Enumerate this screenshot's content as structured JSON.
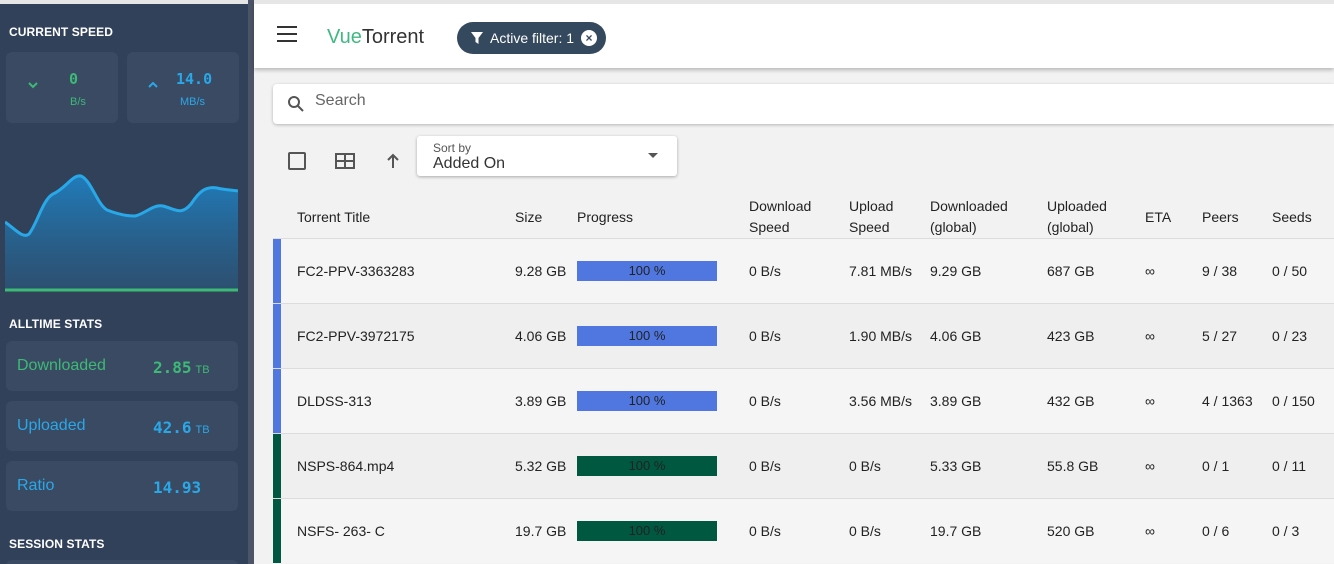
{
  "sidebar": {
    "current_speed_title": "CURRENT SPEED",
    "download": {
      "value": "0",
      "unit": "B/s"
    },
    "upload": {
      "value": "14.0",
      "unit": "MB/s"
    },
    "alltime_title": "ALLTIME STATS",
    "stats": [
      {
        "label": "Downloaded",
        "value": "2.85",
        "unit": "TB"
      },
      {
        "label": "Uploaded",
        "value": "42.6",
        "unit": "TB"
      },
      {
        "label": "Ratio",
        "value": "14.93",
        "unit": ""
      }
    ],
    "session_title": "SESSION STATS"
  },
  "colors": {
    "sidebar_bg": "#31415a",
    "card_bg": "#3a4a63",
    "download_green": "#3cba76",
    "upload_blue": "#29a8e8",
    "chip_bg": "#35495e",
    "seeding_blue": "#5077e0",
    "completed_green": "#005840"
  },
  "header": {
    "brand_prefix": "Vue",
    "brand_suffix": "Torrent",
    "filter_chip": "Active filter: 1"
  },
  "search": {
    "placeholder": "Search"
  },
  "sort": {
    "caption": "Sort by",
    "selected": "Added On"
  },
  "table": {
    "headers": {
      "title": "Torrent Title",
      "size": "Size",
      "progress": "Progress",
      "dl_speed": "Download Speed",
      "up_speed": "Upload Speed",
      "downloaded": "Downloaded (global)",
      "uploaded": "Uploaded (global)",
      "eta": "ETA",
      "peers": "Peers",
      "seeds": "Seeds"
    },
    "rows": [
      {
        "name": "FC2-PPV-3363283",
        "size": "9.28 GB",
        "progress": 1.0,
        "progress_label": "100 %",
        "dl": "0 B/s",
        "up": "7.81 MB/s",
        "downloaded": "9.29 GB",
        "uploaded": "687 GB",
        "eta": "∞",
        "peers": "9 / 38",
        "seeds": "0 / 50",
        "state": "seeding"
      },
      {
        "name": "FC2-PPV-3972175",
        "size": "4.06 GB",
        "progress": 1.0,
        "progress_label": "100 %",
        "dl": "0 B/s",
        "up": "1.90 MB/s",
        "downloaded": "4.06 GB",
        "uploaded": "423 GB",
        "eta": "∞",
        "peers": "5 / 27",
        "seeds": "0 / 23",
        "state": "seeding"
      },
      {
        "name": "DLDSS-313",
        "size": "3.89 GB",
        "progress": 1.0,
        "progress_label": "100 %",
        "dl": "0 B/s",
        "up": "3.56 MB/s",
        "downloaded": "3.89 GB",
        "uploaded": "432 GB",
        "eta": "∞",
        "peers": "4 / 1363",
        "seeds": "0 / 150",
        "state": "seeding"
      },
      {
        "name": "NSPS-864.mp4",
        "size": "5.32 GB",
        "progress": 1.0,
        "progress_label": "100 %",
        "dl": "0 B/s",
        "up": "0 B/s",
        "downloaded": "5.33 GB",
        "uploaded": "55.8 GB",
        "eta": "∞",
        "peers": "0 / 1",
        "seeds": "0 / 11",
        "state": "completed"
      },
      {
        "name": "NSFS- 263- C",
        "size": "19.7 GB",
        "progress": 1.0,
        "progress_label": "100 %",
        "dl": "0 B/s",
        "up": "0 B/s",
        "downloaded": "19.7 GB",
        "uploaded": "520 GB",
        "eta": "∞",
        "peers": "0 / 6",
        "seeds": "0 / 3",
        "state": "completed"
      }
    ]
  }
}
